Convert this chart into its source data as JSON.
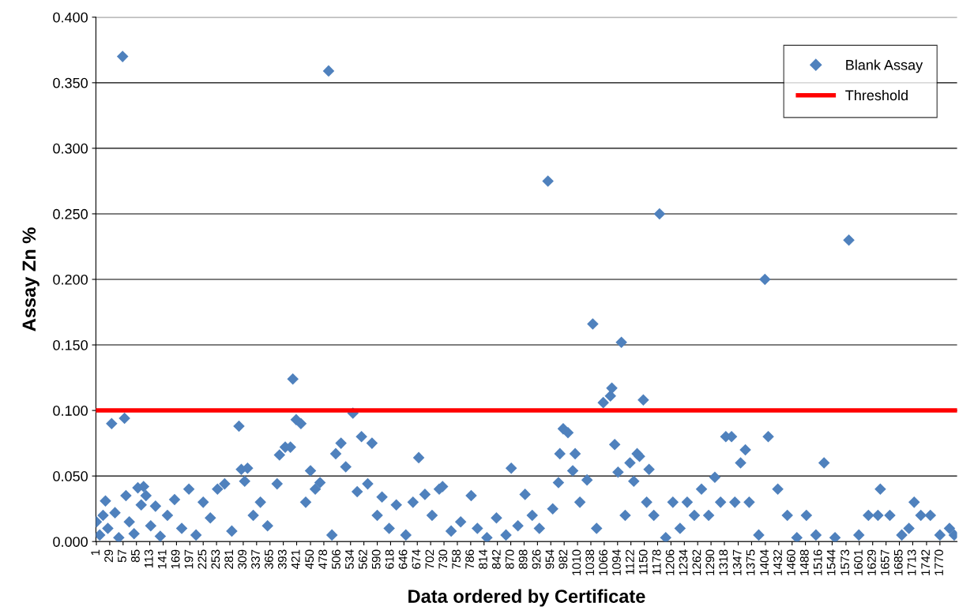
{
  "chart_data": {
    "type": "scatter",
    "xlabel": "Data ordered by Certificate",
    "ylabel": "Assay Zn %",
    "xlim": [
      0,
      1806
    ],
    "xticks": [
      1,
      29,
      57,
      85,
      113,
      141,
      169,
      197,
      225,
      253,
      281,
      309,
      337,
      365,
      393,
      421,
      450,
      478,
      506,
      534,
      562,
      590,
      618,
      646,
      674,
      702,
      730,
      758,
      786,
      814,
      842,
      870,
      898,
      926,
      954,
      982,
      1010,
      1038,
      1066,
      1094,
      1122,
      1150,
      1178,
      1206,
      1234,
      1262,
      1290,
      1318,
      1347,
      1375,
      1404,
      1432,
      1460,
      1488,
      1516,
      1544,
      1573,
      1601,
      1629,
      1657,
      1685,
      1713,
      1742,
      1770
    ],
    "ylim": [
      0,
      0.4
    ],
    "yticks": [
      {
        "value": 0,
        "label": "0.000"
      },
      {
        "value": 0.05,
        "label": "0.050"
      },
      {
        "value": 0.1,
        "label": "0.100"
      },
      {
        "value": 0.15,
        "label": "0.150"
      },
      {
        "value": 0.2,
        "label": "0.200"
      },
      {
        "value": 0.25,
        "label": "0.250"
      },
      {
        "value": 0.3,
        "label": "0.300"
      },
      {
        "value": 0.35,
        "label": "0.350"
      },
      {
        "value": 0.4,
        "label": "0.400"
      }
    ],
    "grid": "y",
    "legend": "top right",
    "marker": "diamond",
    "ref_lines": [
      {
        "axis": "y",
        "value": 0.1,
        "label": "Threshold",
        "color": "#ff0000"
      }
    ],
    "series": [
      {
        "name": "Blank Assay",
        "color": "#4f81bd",
        "x": [
          1,
          8,
          15,
          20,
          25,
          33,
          40,
          48,
          56,
          60,
          63,
          70,
          80,
          88,
          95,
          100,
          105,
          115,
          125,
          135,
          150,
          165,
          180,
          195,
          210,
          225,
          240,
          255,
          270,
          285,
          300,
          305,
          312,
          318,
          330,
          345,
          360,
          380,
          385,
          397,
          408,
          413,
          420,
          430,
          440,
          450,
          460,
          470,
          488,
          495,
          503,
          514,
          524,
          539,
          548,
          557,
          570,
          579,
          590,
          600,
          615,
          630,
          650,
          665,
          677,
          690,
          705,
          720,
          727,
          745,
          765,
          787,
          800,
          820,
          840,
          860,
          871,
          885,
          900,
          915,
          930,
          948,
          958,
          970,
          973,
          980,
          990,
          1000,
          1005,
          1015,
          1030,
          1042,
          1050,
          1064,
          1079,
          1082,
          1088,
          1095,
          1102,
          1110,
          1120,
          1128,
          1135,
          1140,
          1148,
          1155,
          1160,
          1170,
          1182,
          1195,
          1210,
          1225,
          1240,
          1255,
          1270,
          1285,
          1298,
          1310,
          1321,
          1333,
          1340,
          1352,
          1362,
          1370,
          1390,
          1403,
          1410,
          1430,
          1450,
          1470,
          1490,
          1510,
          1527,
          1550,
          1579,
          1600,
          1620,
          1640,
          1645,
          1665,
          1690,
          1705,
          1716,
          1730,
          1750,
          1770,
          1790,
          1800
        ],
        "values": [
          0.015,
          0.005,
          0.02,
          0.031,
          0.01,
          0.09,
          0.022,
          0.003,
          0.37,
          0.094,
          0.035,
          0.015,
          0.006,
          0.041,
          0.028,
          0.042,
          0.035,
          0.012,
          0.027,
          0.004,
          0.02,
          0.032,
          0.01,
          0.04,
          0.005,
          0.03,
          0.018,
          0.04,
          0.044,
          0.008,
          0.088,
          0.055,
          0.046,
          0.056,
          0.02,
          0.03,
          0.012,
          0.044,
          0.066,
          0.072,
          0.072,
          0.124,
          0.093,
          0.09,
          0.03,
          0.054,
          0.04,
          0.045,
          0.359,
          0.005,
          0.067,
          0.075,
          0.057,
          0.098,
          0.038,
          0.08,
          0.044,
          0.075,
          0.02,
          0.034,
          0.01,
          0.028,
          0.005,
          0.03,
          0.064,
          0.036,
          0.02,
          0.04,
          0.042,
          0.008,
          0.015,
          0.035,
          0.01,
          0.003,
          0.018,
          0.005,
          0.056,
          0.012,
          0.036,
          0.02,
          0.01,
          0.275,
          0.025,
          0.045,
          0.067,
          0.086,
          0.083,
          0.054,
          0.067,
          0.03,
          0.047,
          0.166,
          0.01,
          0.106,
          0.111,
          0.117,
          0.074,
          0.053,
          0.152,
          0.02,
          0.06,
          0.046,
          0.067,
          0.065,
          0.108,
          0.03,
          0.055,
          0.02,
          0.25,
          0.003,
          0.03,
          0.01,
          0.03,
          0.02,
          0.04,
          0.02,
          0.049,
          0.03,
          0.08,
          0.08,
          0.03,
          0.06,
          0.07,
          0.03,
          0.005,
          0.2,
          0.08,
          0.04,
          0.02,
          0.003,
          0.02,
          0.005,
          0.06,
          0.003,
          0.23,
          0.005,
          0.02,
          0.02,
          0.04,
          0.02,
          0.005,
          0.01,
          0.03,
          0.02,
          0.02,
          0.005,
          0.01,
          0.005
        ]
      }
    ]
  }
}
